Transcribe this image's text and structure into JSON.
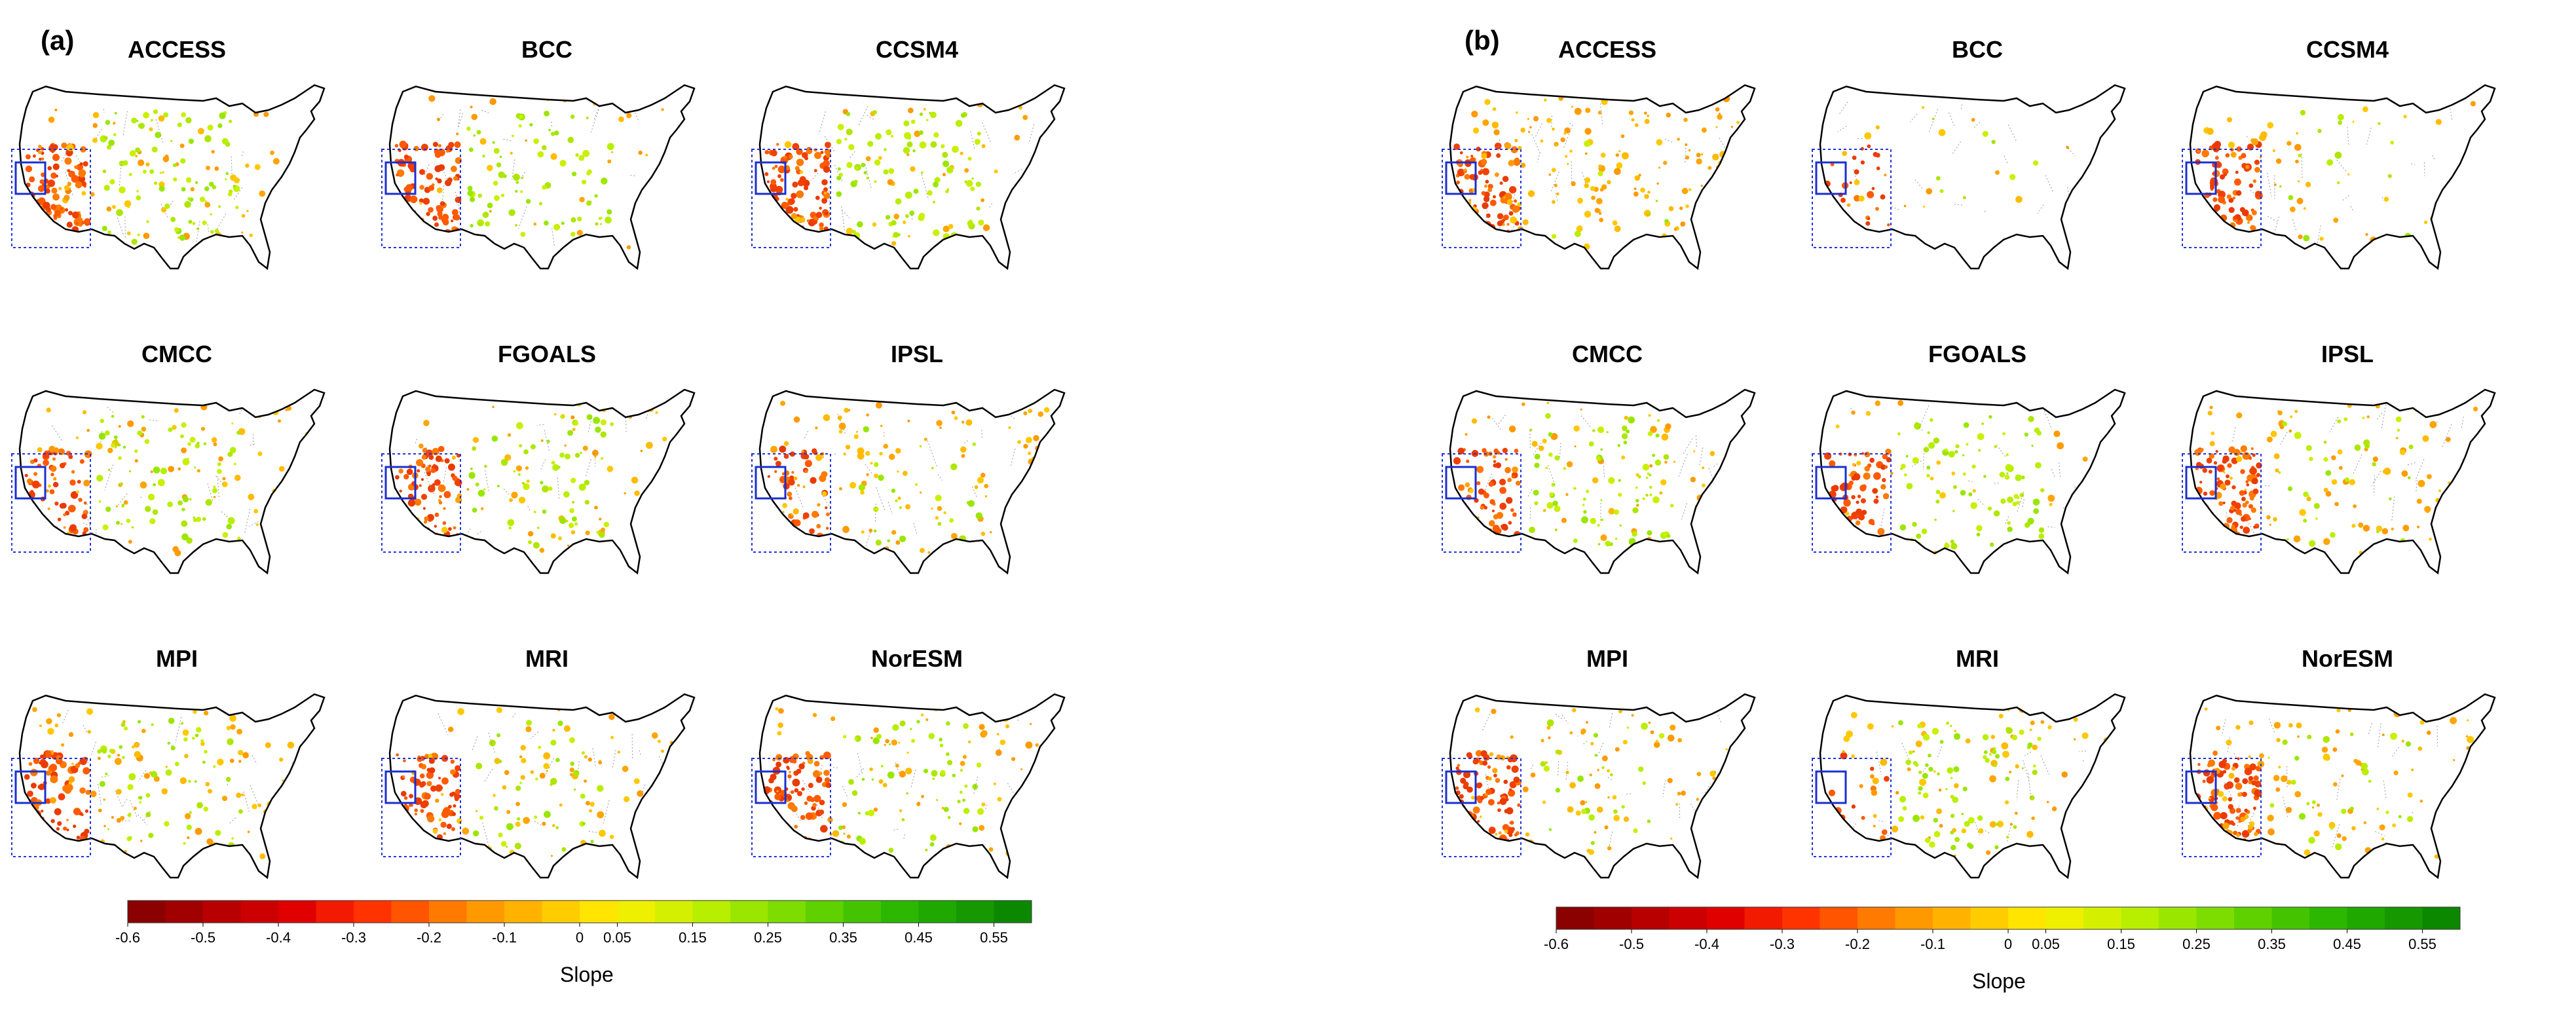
{
  "panels": [
    {
      "id": "a",
      "label": "(a)",
      "maps": [
        "ACCESS",
        "BCC",
        "CCSM4",
        "CMCC",
        "FGOALS",
        "IPSL",
        "MPI",
        "MRI",
        "NorESM"
      ],
      "colorbar_title": "Slope"
    },
    {
      "id": "b",
      "label": "(b)",
      "maps": [
        "ACCESS",
        "BCC",
        "CCSM4",
        "CMCC",
        "FGOALS",
        "IPSL",
        "MPI",
        "MRI",
        "NorESM"
      ],
      "colorbar_title": "Slope"
    }
  ],
  "colorbar": {
    "range": [
      -0.6,
      0.6
    ],
    "tick_labels": [
      "-0.6",
      "-0.5",
      "-0.4",
      "-0.3",
      "-0.2",
      "-0.1",
      "0",
      "0.05",
      "0.15",
      "0.25",
      "0.35",
      "0.45",
      "0.55"
    ],
    "colors": [
      "#8b0000",
      "#a00000",
      "#b80000",
      "#cc0000",
      "#e00000",
      "#f21a00",
      "#ff3300",
      "#ff5500",
      "#ff7a00",
      "#ff9900",
      "#ffb300",
      "#ffcc00",
      "#ffe500",
      "#eef000",
      "#d4f000",
      "#b8ee00",
      "#9ae600",
      "#7ddc00",
      "#5fd000",
      "#44c400",
      "#2cb800",
      "#1fa800",
      "#159800",
      "#0c8800"
    ]
  },
  "patterns": {
    "panel_a": [
      {
        "red": 0.75,
        "orange": 0.4,
        "green": 0.55
      },
      {
        "red": 0.7,
        "orange": 0.2,
        "green": 0.5
      },
      {
        "red": 0.75,
        "orange": 0.25,
        "green": 0.6
      },
      {
        "red": 0.55,
        "orange": 0.4,
        "green": 0.45
      },
      {
        "red": 0.6,
        "orange": 0.35,
        "green": 0.4
      },
      {
        "red": 0.45,
        "orange": 0.6,
        "green": 0.15
      },
      {
        "red": 0.6,
        "orange": 0.5,
        "green": 0.35
      },
      {
        "red": 0.6,
        "orange": 0.45,
        "green": 0.25
      },
      {
        "red": 0.6,
        "orange": 0.45,
        "green": 0.35
      }
    ],
    "panel_b": [
      {
        "red": 0.7,
        "orange": 0.95,
        "green": 0.05
      },
      {
        "red": 0.2,
        "orange": 0.1,
        "green": 0.05
      },
      {
        "red": 0.7,
        "orange": 0.25,
        "green": 0.1
      },
      {
        "red": 0.55,
        "orange": 0.3,
        "green": 0.5
      },
      {
        "red": 0.5,
        "orange": 0.15,
        "green": 0.55
      },
      {
        "red": 0.85,
        "orange": 0.5,
        "green": 0.2
      },
      {
        "red": 0.8,
        "orange": 0.5,
        "green": 0.15
      },
      {
        "red": 0.1,
        "orange": 0.45,
        "green": 0.45
      },
      {
        "red": 0.6,
        "orange": 0.55,
        "green": 0.15
      }
    ]
  }
}
